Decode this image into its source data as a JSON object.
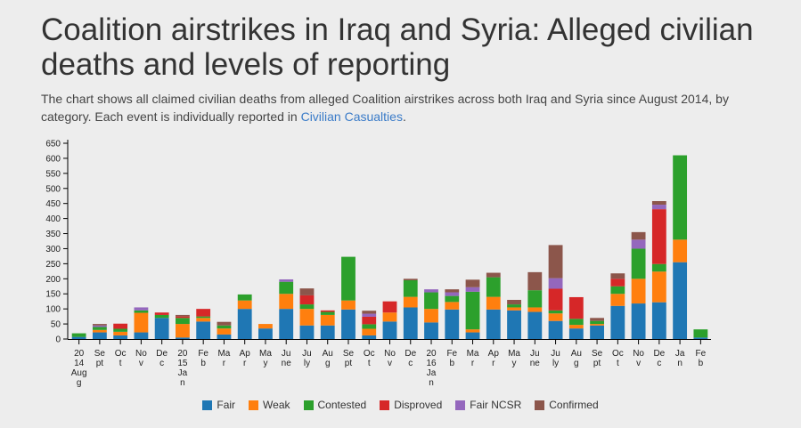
{
  "header": {
    "title": "Coalition airstrikes in Iraq and Syria: Alleged civilian deaths and levels of reporting",
    "subtitle_prefix": "The chart shows all claimed civilian deaths from alleged Coalition airstrikes across both Iraq and Syria since August 2014, by category. Each event is individually reported in ",
    "subtitle_link": "Civilian Casualties",
    "subtitle_suffix": "."
  },
  "chart_data": {
    "type": "bar",
    "stacked": true,
    "y_ticks": [
      0,
      50,
      100,
      150,
      200,
      250,
      300,
      350,
      400,
      450,
      500,
      550,
      600,
      650
    ],
    "ylim": [
      0,
      650
    ],
    "grid": false,
    "legend_position": "bottom",
    "colors": {
      "Fair": "#1f77b4",
      "Weak": "#ff7f0e",
      "Contested": "#2ca02c",
      "Disproved": "#d62728",
      "Fair NCSR": "#9467bd",
      "Confirmed": "#8c564b"
    },
    "categories": [
      [
        "20",
        "14",
        "Aug",
        "g"
      ],
      [
        "Se",
        "pt"
      ],
      [
        "Oc",
        "t"
      ],
      [
        "No",
        "v"
      ],
      [
        "De",
        "c"
      ],
      [
        "20",
        "15",
        "Ja",
        "n"
      ],
      [
        "Fe",
        "b"
      ],
      [
        "Ma",
        "r"
      ],
      [
        "Ap",
        "r"
      ],
      [
        "Ma",
        "y"
      ],
      [
        "Ju",
        "ne"
      ],
      [
        "Ju",
        "ly"
      ],
      [
        "Au",
        "g"
      ],
      [
        "Se",
        "pt"
      ],
      [
        "Oc",
        "t"
      ],
      [
        "No",
        "v"
      ],
      [
        "De",
        "c"
      ],
      [
        "20",
        "16",
        "Ja",
        "n"
      ],
      [
        "Fe",
        "b"
      ],
      [
        "Ma",
        "r"
      ],
      [
        "Ap",
        "r"
      ],
      [
        "Ma",
        "y"
      ],
      [
        "Ju",
        "ne"
      ],
      [
        "Ju",
        "ly"
      ],
      [
        "Au",
        "g"
      ],
      [
        "Se",
        "pt"
      ],
      [
        "Oc",
        "t"
      ],
      [
        "No",
        "v"
      ],
      [
        "De",
        "c"
      ],
      [
        "Ja",
        "n"
      ],
      [
        "Fe",
        "b"
      ]
    ],
    "series": [
      {
        "name": "Fair",
        "values": [
          7,
          22,
          12,
          22,
          70,
          5,
          58,
          15,
          100,
          35,
          100,
          45,
          45,
          98,
          12,
          58,
          105,
          55,
          98,
          22,
          98,
          95,
          90,
          60,
          35,
          45,
          110,
          118,
          122,
          255,
          5
        ]
      },
      {
        "name": "Weak",
        "values": [
          0,
          8,
          12,
          65,
          0,
          45,
          12,
          20,
          28,
          15,
          50,
          55,
          35,
          30,
          22,
          30,
          35,
          45,
          25,
          10,
          42,
          10,
          15,
          25,
          12,
          5,
          40,
          82,
          102,
          75,
          0
        ]
      },
      {
        "name": "Contested",
        "values": [
          12,
          10,
          10,
          8,
          10,
          20,
          5,
          10,
          20,
          0,
          40,
          15,
          10,
          145,
          15,
          0,
          55,
          55,
          20,
          125,
          65,
          10,
          57,
          10,
          20,
          10,
          25,
          100,
          25,
          280,
          27
        ]
      },
      {
        "name": "Disproved",
        "values": [
          0,
          0,
          17,
          0,
          8,
          5,
          25,
          0,
          0,
          0,
          0,
          30,
          5,
          0,
          25,
          37,
          0,
          0,
          0,
          0,
          0,
          0,
          0,
          72,
          72,
          0,
          25,
          0,
          182,
          0,
          0
        ]
      },
      {
        "name": "Fair NCSR",
        "values": [
          0,
          5,
          0,
          10,
          0,
          0,
          0,
          0,
          0,
          0,
          8,
          0,
          0,
          0,
          10,
          0,
          0,
          10,
          12,
          15,
          0,
          0,
          0,
          35,
          0,
          0,
          0,
          30,
          15,
          0,
          0
        ]
      },
      {
        "name": "Confirmed",
        "values": [
          0,
          5,
          0,
          0,
          0,
          5,
          0,
          12,
          0,
          0,
          0,
          23,
          0,
          0,
          10,
          0,
          5,
          0,
          10,
          25,
          15,
          15,
          60,
          110,
          0,
          10,
          18,
          25,
          12,
          0,
          0
        ]
      }
    ]
  }
}
